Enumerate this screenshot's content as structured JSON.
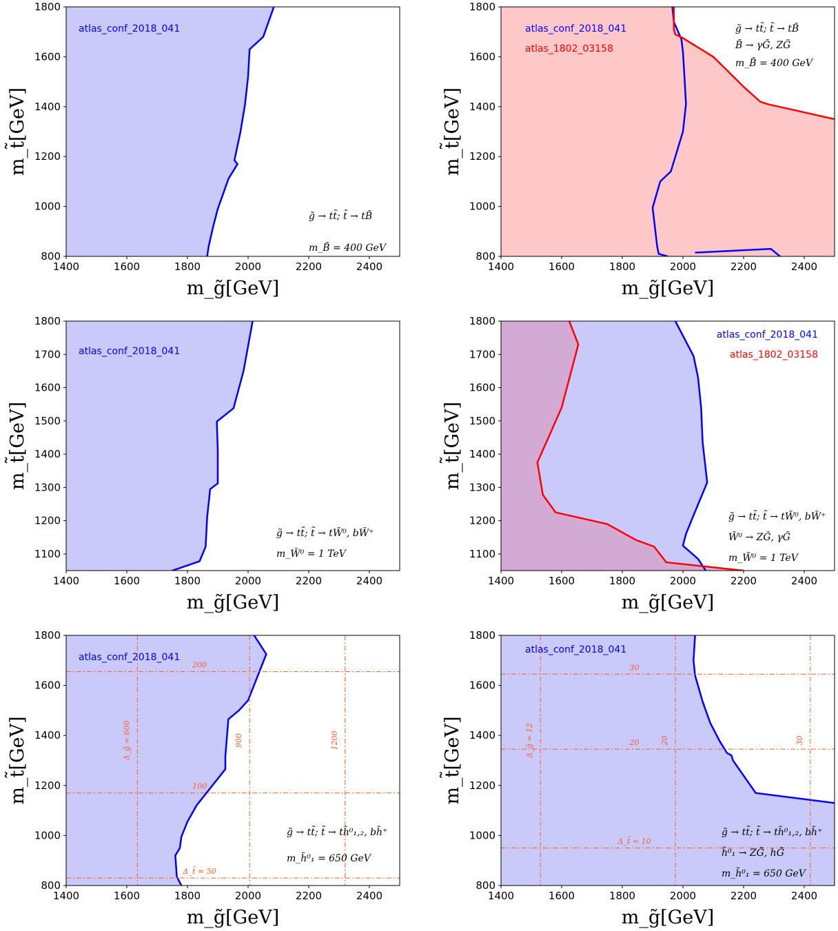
{
  "chart_data": [
    {
      "type": "area",
      "xlabel": "m_g̃[GeV]",
      "ylabel": "m_t̃[GeV]",
      "xlim": [
        1400,
        2500
      ],
      "ylim": [
        800,
        1800
      ],
      "xticks": [
        1400,
        1600,
        1800,
        2000,
        2200,
        2400
      ],
      "yticks": [
        800,
        1000,
        1200,
        1400,
        1600,
        1800
      ],
      "legend_placement": "top-left",
      "series": [
        {
          "name": "atlas_conf_2018_041",
          "color": "#0000ff",
          "fill": "#c9c9fa",
          "x": [
            1865,
            1870,
            1885,
            1900,
            1935,
            1965,
            1955,
            1975,
            1990,
            2000,
            2005,
            2050,
            2085
          ],
          "y": [
            800,
            840,
            920,
            990,
            1110,
            1170,
            1185,
            1300,
            1410,
            1520,
            1630,
            1680,
            1800
          ]
        }
      ],
      "annotations": [
        "g̃ → tt̃; t̃ → tB̃",
        "m_B̃ = 400 GeV"
      ]
    },
    {
      "type": "area",
      "xlabel": "m_g̃[GeV]",
      "ylabel": "m_t̃[GeV]",
      "xlim": [
        1400,
        2500
      ],
      "ylim": [
        800,
        1800
      ],
      "xticks": [
        1400,
        1600,
        1800,
        2000,
        2200,
        2400
      ],
      "yticks": [
        800,
        1000,
        1200,
        1400,
        1600,
        1800
      ],
      "legend_placement": "top-left",
      "series": [
        {
          "name": "atlas_conf_2018_041",
          "color": "#0000ff",
          "fill": "#c9c9fa",
          "x": [
            1950,
            1920,
            1915,
            1900,
            1925,
            1960,
            1965,
            2000,
            2010,
            2005,
            2000,
            1995,
            1970,
            1965,
            2040,
            2290,
            2320
          ],
          "y": [
            800,
            810,
            840,
            995,
            1100,
            1140,
            1160,
            1300,
            1410,
            1520,
            1620,
            1670,
            1740,
            1800,
            815,
            830,
            800
          ]
        },
        {
          "name": "atlas_1802_03158",
          "color": "#ff0000",
          "fill": "#ffc8c8",
          "x": [
            1970,
            1970,
            1975,
            2000,
            2100,
            2200,
            2255,
            2280,
            2500
          ],
          "y": [
            1800,
            1710,
            1690,
            1675,
            1600,
            1480,
            1420,
            1410,
            1350
          ]
        }
      ],
      "annotations": [
        "g̃ → tt̃; t̃ → tB̃",
        "B̃ → γG̃, ZG̃",
        "m_B̃ = 400 GeV"
      ]
    },
    {
      "type": "area",
      "xlabel": "m_g̃[GeV]",
      "ylabel": "m_t̃[GeV]",
      "xlim": [
        1400,
        2500
      ],
      "ylim": [
        1050,
        1800
      ],
      "xticks": [
        1400,
        1600,
        1800,
        2000,
        2200,
        2400
      ],
      "yticks": [
        1100,
        1200,
        1300,
        1400,
        1500,
        1600,
        1700,
        1800
      ],
      "legend_placement": "top-left",
      "series": [
        {
          "name": "atlas_conf_2018_041",
          "color": "#0000ff",
          "fill": "#c9c9fa",
          "x": [
            1750,
            1840,
            1860,
            1865,
            1875,
            1900,
            1900,
            1897,
            1952,
            1985,
            2015
          ],
          "y": [
            1050,
            1078,
            1122,
            1210,
            1295,
            1312,
            1410,
            1498,
            1538,
            1650,
            1800
          ]
        }
      ],
      "annotations": [
        "g̃ → tt̃; t̃ → tW̃⁰, bW̃⁺",
        "m_W̃⁰ = 1 TeV"
      ]
    },
    {
      "type": "area",
      "xlabel": "m_g̃[GeV]",
      "ylabel": "m_t̃[GeV]",
      "xlim": [
        1400,
        2500
      ],
      "ylim": [
        1050,
        1800
      ],
      "xticks": [
        1400,
        1600,
        1800,
        2000,
        2200,
        2400
      ],
      "yticks": [
        1100,
        1200,
        1300,
        1400,
        1500,
        1600,
        1700,
        1800
      ],
      "legend_placement": "top-right",
      "series": [
        {
          "name": "atlas_conf_2018_041",
          "color": "#0000ff",
          "fill": "#c9c9fa",
          "x": [
            2075,
            2050,
            2000,
            2010,
            2030,
            2080,
            2065,
            2060,
            2050,
            2035,
            1975
          ],
          "y": [
            1050,
            1085,
            1125,
            1160,
            1205,
            1315,
            1435,
            1540,
            1630,
            1695,
            1800
          ]
        },
        {
          "name": "atlas_1802_03158",
          "color": "#ff0000",
          "fill": "#d4a4cc",
          "x": [
            2200,
            1945,
            1905,
            1845,
            1750,
            1580,
            1538,
            1520,
            1600,
            1655,
            1625
          ],
          "y": [
            1050,
            1075,
            1122,
            1142,
            1190,
            1225,
            1278,
            1375,
            1540,
            1730,
            1800
          ]
        }
      ],
      "annotations": [
        "g̃ → tt̃; t̃ → tW̃⁰, bW̃⁺",
        "W̃⁰ → ZG̃, γG̃",
        "m_W̃⁰ = 1 TeV"
      ]
    },
    {
      "type": "area",
      "xlabel": "m_g̃[GeV]",
      "ylabel": "m_t̃[GeV]",
      "xlim": [
        1400,
        2500
      ],
      "ylim": [
        800,
        1800
      ],
      "xticks": [
        1400,
        1600,
        1800,
        2000,
        2200,
        2400
      ],
      "yticks": [
        800,
        1000,
        1200,
        1400,
        1600,
        1800
      ],
      "legend_placement": "top-left",
      "series": [
        {
          "name": "atlas_conf_2018_041",
          "color": "#0000ff",
          "fill": "#c9c9fa",
          "x": [
            1780,
            1765,
            1760,
            1775,
            1780,
            1800,
            1830,
            1925,
            1925,
            1935,
            1970,
            2000,
            2060,
            2020
          ],
          "y": [
            800,
            835,
            920,
            950,
            995,
            1055,
            1120,
            1265,
            1315,
            1465,
            1500,
            1540,
            1725,
            1800
          ]
        }
      ],
      "reference_lines": [
        {
          "orientation": "vertical",
          "value": 1635,
          "label": "Δ_g̃ = 600"
        },
        {
          "orientation": "vertical",
          "value": 2005,
          "label": "900"
        },
        {
          "orientation": "vertical",
          "value": 2320,
          "label": "1200"
        },
        {
          "orientation": "horizontal",
          "value": 830,
          "label": "Δ_t̃ = 50"
        },
        {
          "orientation": "horizontal",
          "value": 1170,
          "label": "100"
        },
        {
          "orientation": "horizontal",
          "value": 1655,
          "label": "200"
        }
      ],
      "annotations": [
        "g̃ → tt̃; t̃ → th̃⁰₁,₂, bh̃⁺",
        "m_h̃⁰₁ = 650 GeV"
      ]
    },
    {
      "type": "area",
      "xlabel": "m_g̃[GeV]",
      "ylabel": "m_t̃[GeV]",
      "xlim": [
        1400,
        2500
      ],
      "ylim": [
        800,
        1800
      ],
      "xticks": [
        1400,
        1600,
        1800,
        2000,
        2200,
        2400
      ],
      "yticks": [
        800,
        1000,
        1200,
        1400,
        1600,
        1800
      ],
      "legend_placement": "top-left",
      "series": [
        {
          "name": "atlas_conf_2018_041",
          "color": "#0000ff",
          "fill": "#c9c9fa",
          "x": [
            2500,
            2240,
            2165,
            2160,
            2145,
            2120,
            2090,
            2065,
            2040,
            2035,
            2040
          ],
          "y": [
            1130,
            1170,
            1300,
            1320,
            1330,
            1380,
            1450,
            1535,
            1640,
            1700,
            1800
          ]
        }
      ],
      "reference_lines": [
        {
          "orientation": "vertical",
          "value": 1530,
          "label": "Δ_g̃ = 12"
        },
        {
          "orientation": "vertical",
          "value": 1975,
          "label": "20"
        },
        {
          "orientation": "vertical",
          "value": 2420,
          "label": "30"
        },
        {
          "orientation": "horizontal",
          "value": 950,
          "label": "Δ_t̃ = 10"
        },
        {
          "orientation": "horizontal",
          "value": 1345,
          "label": "20"
        },
        {
          "orientation": "horizontal",
          "value": 1645,
          "label": "30"
        }
      ],
      "annotations": [
        "g̃ → tt̃; t̃ → th̃⁰₁,₂, bh̃⁺",
        "h̃⁰₁ → ZG̃, hG̃",
        "m_h̃⁰₁ = 650 GeV"
      ]
    }
  ]
}
